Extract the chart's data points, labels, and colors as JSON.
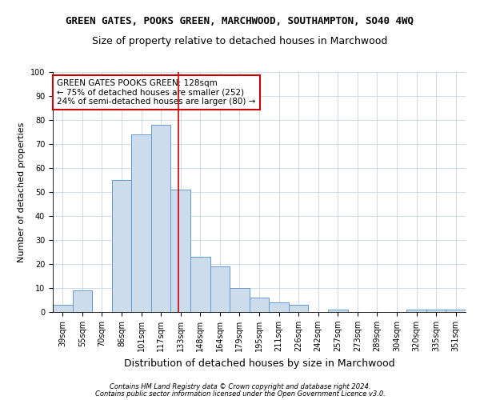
{
  "title": "GREEN GATES, POOKS GREEN, MARCHWOOD, SOUTHAMPTON, SO40 4WQ",
  "subtitle": "Size of property relative to detached houses in Marchwood",
  "xlabel": "Distribution of detached houses by size in Marchwood",
  "ylabel": "Number of detached properties",
  "categories": [
    "39sqm",
    "55sqm",
    "70sqm",
    "86sqm",
    "101sqm",
    "117sqm",
    "133sqm",
    "148sqm",
    "164sqm",
    "179sqm",
    "195sqm",
    "211sqm",
    "226sqm",
    "242sqm",
    "257sqm",
    "273sqm",
    "289sqm",
    "304sqm",
    "320sqm",
    "335sqm",
    "351sqm"
  ],
  "values": [
    3,
    9,
    0,
    55,
    74,
    78,
    51,
    23,
    19,
    10,
    6,
    4,
    3,
    0,
    1,
    0,
    0,
    0,
    1,
    1,
    1
  ],
  "bar_color": "#cddcec",
  "bar_edge_color": "#6699cc",
  "vline_x": 5.88,
  "vline_color": "#cc0000",
  "ylim": [
    0,
    100
  ],
  "annotation_text": "GREEN GATES POOKS GREEN: 128sqm\n← 75% of detached houses are smaller (252)\n24% of semi-detached houses are larger (80) →",
  "annotation_box_color": "#ffffff",
  "annotation_box_edge": "#cc0000",
  "footer1": "Contains HM Land Registry data © Crown copyright and database right 2024.",
  "footer2": "Contains public sector information licensed under the Open Government Licence v3.0.",
  "bg_color": "#ffffff",
  "grid_color": "#c8d4e0",
  "title_fontsize": 9,
  "subtitle_fontsize": 9,
  "xlabel_fontsize": 9,
  "ylabel_fontsize": 8,
  "tick_fontsize": 7,
  "annotation_fontsize": 7.5,
  "footer_fontsize": 6
}
